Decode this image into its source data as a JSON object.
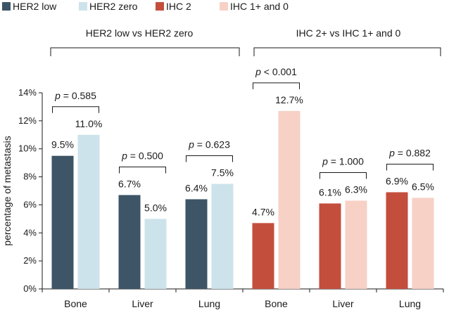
{
  "chart_data": {
    "type": "bar",
    "ylabel": "percentage of metastasis",
    "ylim": [
      0,
      14
    ],
    "yticks": [
      "0%",
      "2%",
      "4%",
      "6%",
      "8%",
      "10%",
      "12%",
      "14%"
    ],
    "ytick_values": [
      0,
      2,
      4,
      6,
      8,
      10,
      12,
      14
    ],
    "categories": [
      "Bone",
      "Liver",
      "Lung",
      "Bone",
      "Liver",
      "Lung"
    ],
    "legend": [
      {
        "name": "HER2 low",
        "color": "#3d5566"
      },
      {
        "name": "HER2 zero",
        "color": "#cde3eb"
      },
      {
        "name": "IHC 2",
        "color": "#c44e3c"
      },
      {
        "name": "IHC 1+ and 0",
        "color": "#f7d0c6"
      }
    ],
    "groups": [
      {
        "title": "HER2 low vs HER2 zero",
        "categories": [
          {
            "name": "Bone",
            "values": [
              9.5,
              11.0
            ],
            "labels": [
              "9.5%",
              "11.0%"
            ],
            "series": [
              0,
              1
            ],
            "pvalue": "= 0.585"
          },
          {
            "name": "Liver",
            "values": [
              6.7,
              5.0
            ],
            "labels": [
              "6.7%",
              "5.0%"
            ],
            "series": [
              0,
              1
            ],
            "pvalue": "= 0.500"
          },
          {
            "name": "Lung",
            "values": [
              6.4,
              7.5
            ],
            "labels": [
              "6.4%",
              "7.5%"
            ],
            "series": [
              0,
              1
            ],
            "pvalue": "= 0.623"
          }
        ]
      },
      {
        "title": "IHC 2+ vs IHC 1+ and 0",
        "categories": [
          {
            "name": "Bone",
            "values": [
              4.7,
              12.7
            ],
            "labels": [
              "4.7%",
              "12.7%"
            ],
            "series": [
              2,
              3
            ],
            "pvalue": "< 0.001"
          },
          {
            "name": "Liver",
            "values": [
              6.1,
              6.3
            ],
            "labels": [
              "6.1%",
              "6.3%"
            ],
            "series": [
              2,
              3
            ],
            "pvalue": "= 1.000"
          },
          {
            "name": "Lung",
            "values": [
              6.9,
              6.5
            ],
            "labels": [
              "6.9%",
              "6.5%"
            ],
            "series": [
              2,
              3
            ],
            "pvalue": "= 0.882"
          }
        ]
      }
    ],
    "pvalue_prefix": "p"
  }
}
